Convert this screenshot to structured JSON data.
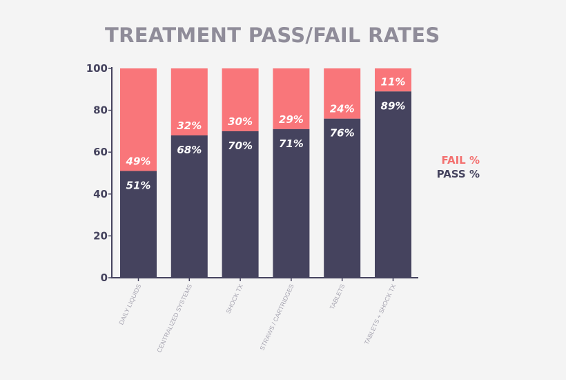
{
  "colors": {
    "pass": "#45435e",
    "fail": "#f9767a",
    "axis": "#45435e",
    "background": "#f4f4f4"
  },
  "chart_data": {
    "type": "bar",
    "stacked": true,
    "title": "TREATMENT PASS/FAIL RATES",
    "categories": [
      "DAILY LIQUIDS",
      "CENTRALIZED SYSTEMS",
      "SHOCK TX",
      "STRAWS / CARTRIDGES",
      "TABLETS",
      "TABLETS + SHOCK TX"
    ],
    "series": [
      {
        "name": "PASS  %",
        "values": [
          51,
          68,
          70,
          71,
          76,
          89
        ]
      },
      {
        "name": "FAIL %",
        "values": [
          49,
          32,
          30,
          29,
          24,
          11
        ]
      }
    ],
    "data_labels": {
      "pass": [
        "51%",
        "68%",
        "70%",
        "71%",
        "76%",
        "89%"
      ],
      "fail": [
        "49%",
        "32%",
        "30%",
        "29%",
        "24%",
        "11%"
      ]
    },
    "ylim": [
      0,
      100
    ],
    "yticks": [
      0,
      20,
      40,
      60,
      80,
      100
    ],
    "xlabel": "",
    "ylabel": "",
    "grid": false,
    "legend_position": "right"
  }
}
